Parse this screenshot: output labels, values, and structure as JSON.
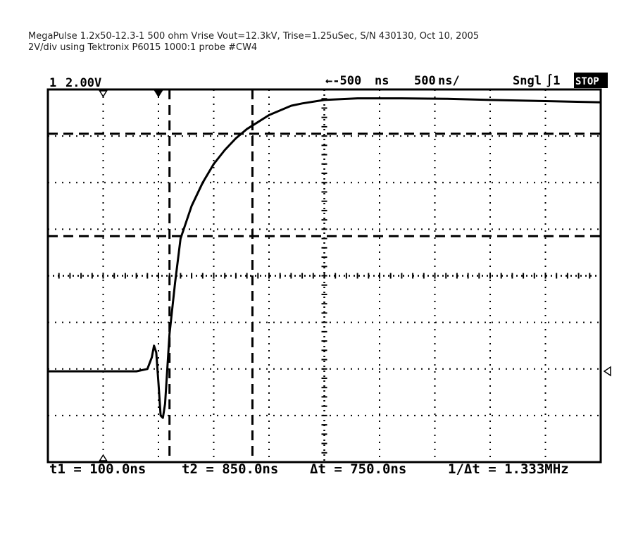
{
  "caption": {
    "line1": "MegaPulse 1.2x50-12.3-1 500 ohm Vrise Vout=12.3kV, Trise=1.25uSec, S/N 430130, Oct 10, 2005",
    "line2": "2V/div using Tektronix P6015 1000:1 probe #CW4"
  },
  "scope_header": {
    "channel": "1",
    "volts_per_div": "2.00V",
    "trigger_position": "←-500",
    "trigger_unit": "ns",
    "time_per_div": "500",
    "time_unit": "ns/",
    "mode": "Sngl",
    "trigger_symbol": "∫1",
    "state": "STOP"
  },
  "measurements": {
    "t1": "t1 = 100.0ns",
    "t2": "t2 = 850.0ns",
    "dt": "Δt = 750.0ns",
    "inv_dt": "1/Δt = 1.333MHz"
  },
  "chart_data": {
    "type": "line",
    "x_unit": "ns",
    "y_unit": "V",
    "xlim": [
      -1000,
      4000
    ],
    "ylim": [
      -8,
      8
    ],
    "grid": true,
    "cursors_time_ns": [
      100,
      850
    ],
    "cursors_voltage_v": [
      6.1,
      1.7
    ],
    "series": [
      {
        "x": [
          -1000,
          -500,
          -200,
          -100,
          -60,
          -40,
          -20,
          0,
          20,
          40,
          60,
          100,
          150,
          200,
          300,
          400,
          500,
          600,
          700,
          800,
          900,
          1000,
          1100,
          1200,
          1300,
          1500,
          1800,
          2200,
          2600,
          3000,
          3500,
          4000
        ],
        "values": [
          -4.1,
          -4.1,
          -4.1,
          -4.0,
          -3.5,
          -3.0,
          -3.3,
          -4.6,
          -6.0,
          -6.1,
          -5.5,
          -2.5,
          -0.3,
          1.6,
          3.0,
          4.0,
          4.8,
          5.4,
          5.9,
          6.3,
          6.6,
          6.9,
          7.1,
          7.3,
          7.4,
          7.55,
          7.62,
          7.62,
          7.6,
          7.55,
          7.5,
          7.45
        ]
      }
    ]
  }
}
